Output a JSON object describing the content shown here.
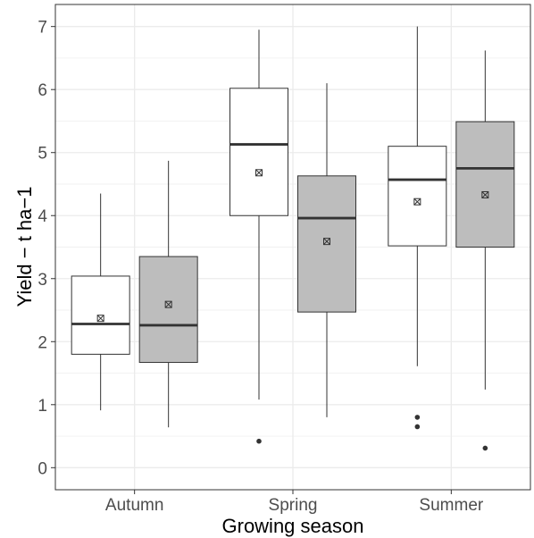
{
  "chart_data": {
    "type": "box",
    "xlabel": "Growing season",
    "ylabel": "Yield − t ha−1",
    "categories": [
      "Autumn",
      "Spring",
      "Summer"
    ],
    "yticks": [
      "0",
      "1",
      "2",
      "3",
      "4",
      "5",
      "6",
      "7"
    ],
    "ylim": [
      -0.35,
      7.35
    ],
    "grid": true,
    "legend": "none",
    "colors": {
      "group_1_fill": "#ffffff",
      "group_2_fill": "#bdbdbd",
      "box_stroke": "#333333",
      "median": "#333333",
      "grid": "#ebebeb"
    },
    "series": [
      {
        "values": [
          {
            "category": "Autumn",
            "min": 0.91,
            "q1": 1.8,
            "median": 2.28,
            "q3": 3.04,
            "max": 4.35,
            "mean": 2.37,
            "outliers": []
          },
          {
            "category": "Spring",
            "min": 1.08,
            "q1": 4.0,
            "median": 5.13,
            "q3": 6.02,
            "max": 6.95,
            "mean": 4.68,
            "outliers": [
              0.42
            ]
          },
          {
            "category": "Summer",
            "min": 1.61,
            "q1": 3.52,
            "median": 4.57,
            "q3": 5.1,
            "max": 7.0,
            "mean": 4.22,
            "outliers": [
              0.8,
              0.65
            ]
          }
        ]
      },
      {
        "values": [
          {
            "category": "Autumn",
            "min": 0.64,
            "q1": 1.67,
            "median": 2.26,
            "q3": 3.35,
            "max": 4.87,
            "mean": 2.59,
            "outliers": []
          },
          {
            "category": "Spring",
            "min": 0.8,
            "q1": 2.47,
            "median": 3.96,
            "q3": 4.63,
            "max": 6.1,
            "mean": 3.59,
            "outliers": []
          },
          {
            "category": "Summer",
            "min": 1.24,
            "q1": 3.5,
            "median": 4.75,
            "q3": 5.49,
            "max": 6.62,
            "mean": 4.33,
            "outliers": [
              0.31
            ]
          }
        ]
      }
    ]
  }
}
